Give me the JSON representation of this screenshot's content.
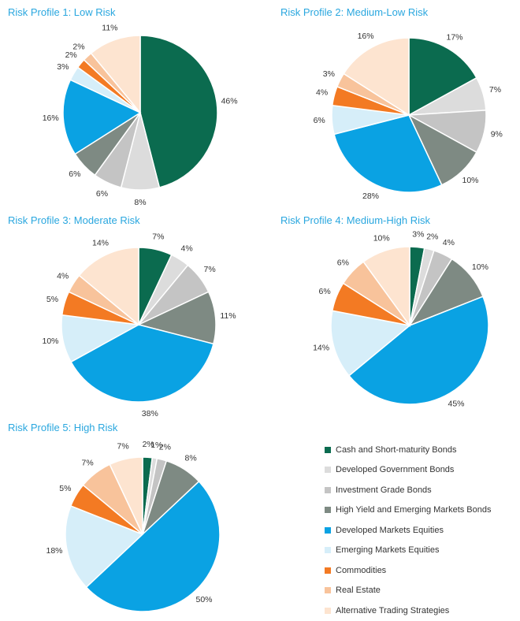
{
  "colors": [
    "#0b6b4f",
    "#dcdcdc",
    "#c4c4c4",
    "#7e8a83",
    "#0aa2e3",
    "#d6eef9",
    "#f37a23",
    "#f8c39b",
    "#fde4d0"
  ],
  "legend": [
    "Cash and Short-maturity Bonds",
    "Developed Government Bonds",
    "Investment Grade Bonds",
    "High Yield and Emerging Markets Bonds",
    "Developed Markets Equities",
    "Emerging Markets Equities",
    "Commodities",
    "Real Estate",
    "Alternative Trading Strategies"
  ],
  "chart_data": [
    {
      "type": "pie",
      "title": "Risk Profile 1: Low Risk",
      "categories": [
        "Cash and Short-maturity Bonds",
        "Developed Government Bonds",
        "Investment Grade Bonds",
        "High Yield and Emerging Markets Bonds",
        "Developed Markets Equities",
        "Emerging Markets Equities",
        "Commodities",
        "Real Estate",
        "Alternative Trading Strategies"
      ],
      "values": [
        46,
        8,
        6,
        6,
        16,
        3,
        2,
        2,
        11
      ]
    },
    {
      "type": "pie",
      "title": "Risk Profile 2: Medium-Low Risk",
      "categories": [
        "Cash and Short-maturity Bonds",
        "Developed Government Bonds",
        "Investment Grade Bonds",
        "High Yield and Emerging Markets Bonds",
        "Developed Markets Equities",
        "Emerging Markets Equities",
        "Commodities",
        "Real Estate",
        "Alternative Trading Strategies"
      ],
      "values": [
        17,
        7,
        9,
        10,
        28,
        6,
        4,
        3,
        16
      ]
    },
    {
      "type": "pie",
      "title": "Risk Profile 3: Moderate Risk",
      "categories": [
        "Cash and Short-maturity Bonds",
        "Developed Government Bonds",
        "Investment Grade Bonds",
        "High Yield and Emerging Markets Bonds",
        "Developed Markets Equities",
        "Emerging Markets Equities",
        "Commodities",
        "Real Estate",
        "Alternative Trading Strategies"
      ],
      "values": [
        7,
        4,
        7,
        11,
        38,
        10,
        5,
        4,
        14
      ]
    },
    {
      "type": "pie",
      "title": "Risk Profile 4: Medium-High Risk",
      "categories": [
        "Cash and Short-maturity Bonds",
        "Developed Government Bonds",
        "Investment Grade Bonds",
        "High Yield and Emerging Markets Bonds",
        "Developed Markets Equities",
        "Emerging Markets Equities",
        "Commodities",
        "Real Estate",
        "Alternative Trading Strategies"
      ],
      "values": [
        3,
        2,
        4,
        10,
        45,
        14,
        6,
        6,
        10
      ]
    },
    {
      "type": "pie",
      "title": "Risk Profile 5: High Risk",
      "categories": [
        "Cash and Short-maturity Bonds",
        "Developed Government Bonds",
        "Investment Grade Bonds",
        "High Yield and Emerging Markets Bonds",
        "Developed Markets Equities",
        "Emerging Markets Equities",
        "Commodities",
        "Real Estate",
        "Alternative Trading Strategies"
      ],
      "values": [
        2,
        1,
        2,
        8,
        50,
        18,
        5,
        7,
        7
      ]
    }
  ]
}
